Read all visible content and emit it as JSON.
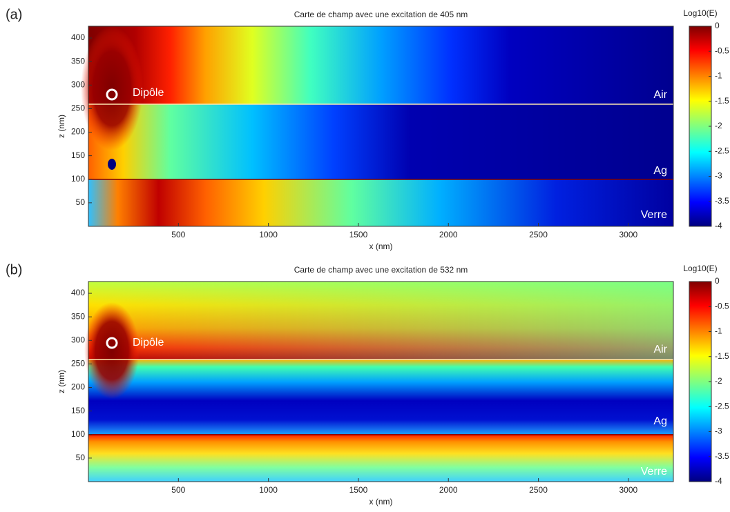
{
  "chart_data": [
    {
      "type": "heatmap",
      "panel_label": "(a)",
      "title": "Carte de champ avec une excitation de 405 nm",
      "x_label": "x (nm)",
      "y_label": "z (nm)",
      "xlim": [
        0,
        3250
      ],
      "xticks": [
        500,
        1000,
        1500,
        2000,
        2500,
        3000
      ],
      "ylim": [
        0,
        425
      ],
      "yticks": [
        50,
        100,
        150,
        200,
        250,
        300,
        350,
        400
      ],
      "colorbar_label": "Log10(E)",
      "clim": [
        -4,
        0
      ],
      "cticks": [
        0,
        -0.5,
        -1,
        -1.5,
        -2,
        -2.5,
        -3,
        -3.5,
        -4
      ],
      "annotations": [
        "Dipôle",
        "Air",
        "Ag",
        "Verre"
      ]
    },
    {
      "type": "heatmap",
      "panel_label": "(b)",
      "title": "Carte de champ avec une excitation de 532 nm",
      "x_label": "x (nm)",
      "y_label": "z (nm)",
      "xlim": [
        0,
        3250
      ],
      "xticks": [
        500,
        1000,
        1500,
        2000,
        2500,
        3000
      ],
      "ylim": [
        0,
        425
      ],
      "yticks": [
        50,
        100,
        150,
        200,
        250,
        300,
        350,
        400
      ],
      "colorbar_label": "Log10(E)",
      "clim": [
        -4,
        0
      ],
      "cticks": [
        0,
        -0.5,
        -1,
        -1.5,
        -2,
        -2.5,
        -3,
        -3.5,
        -4
      ],
      "annotations": [
        "Dipôle",
        "Air",
        "Ag",
        "Verre"
      ]
    }
  ]
}
